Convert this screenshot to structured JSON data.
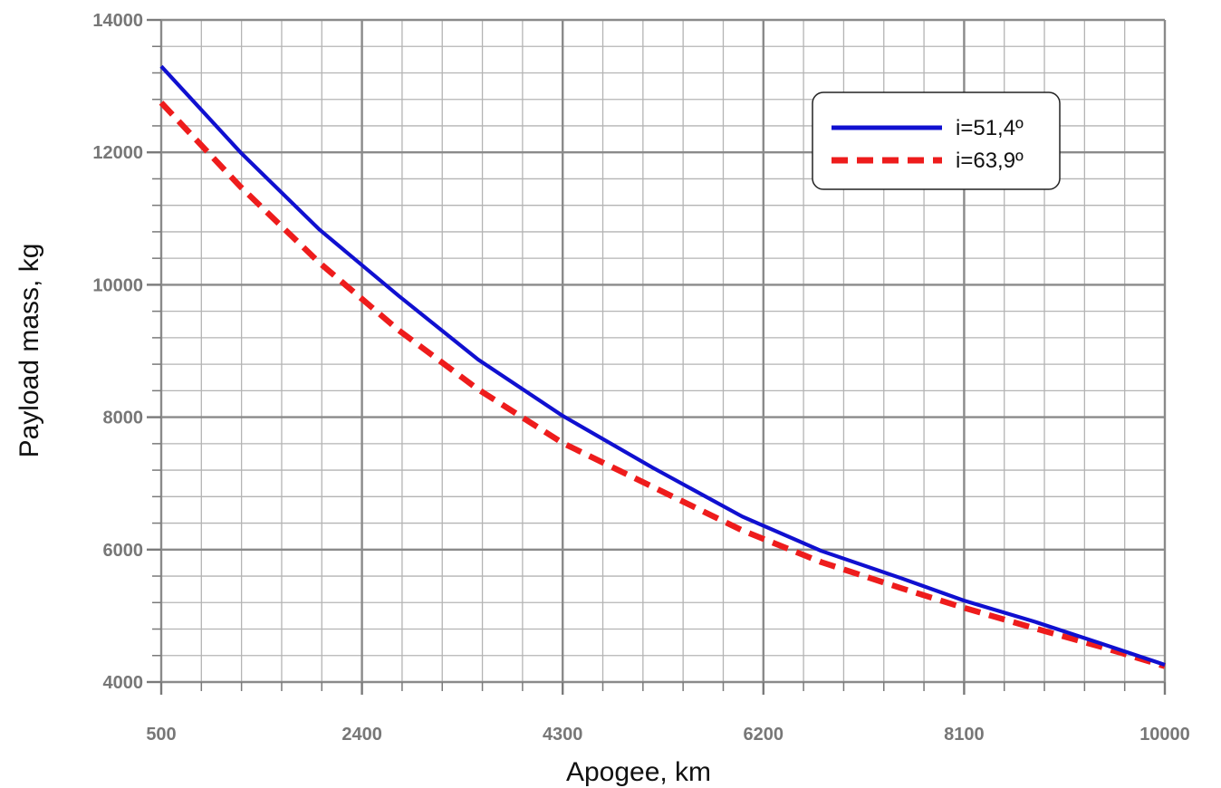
{
  "chart_data": {
    "type": "line",
    "xlabel": "Apogee, km",
    "ylabel": "Payload mass, kg",
    "xlim": [
      500,
      10000
    ],
    "ylim": [
      4000,
      14000
    ],
    "x_ticks": [
      "500",
      "2400",
      "4300",
      "6200",
      "8100",
      "10000"
    ],
    "y_ticks": [
      "4000",
      "6000",
      "8000",
      "10000",
      "12000",
      "14000"
    ],
    "grid": true,
    "legend_position": "top-right",
    "series": [
      {
        "name": "i=51,4º",
        "color": "#1010d0",
        "style": "solid",
        "x": [
          500,
          1250,
          2000,
          2750,
          3500,
          4300,
          5150,
          6000,
          6750,
          7500,
          8100,
          8750,
          9400,
          10000
        ],
        "y": [
          13300,
          12000,
          10830,
          9830,
          8870,
          8020,
          7240,
          6500,
          5980,
          5570,
          5230,
          4920,
          4580,
          4260
        ]
      },
      {
        "name": "i=63,9º",
        "color": "#ee1c1c",
        "style": "dashed",
        "x": [
          500,
          1250,
          2000,
          2750,
          3500,
          4300,
          5150,
          6000,
          6750,
          7500,
          8100,
          8750,
          9400,
          10000
        ],
        "y": [
          12750,
          11480,
          10330,
          9310,
          8420,
          7610,
          6950,
          6290,
          5810,
          5420,
          5120,
          4820,
          4530,
          4240
        ]
      }
    ]
  }
}
